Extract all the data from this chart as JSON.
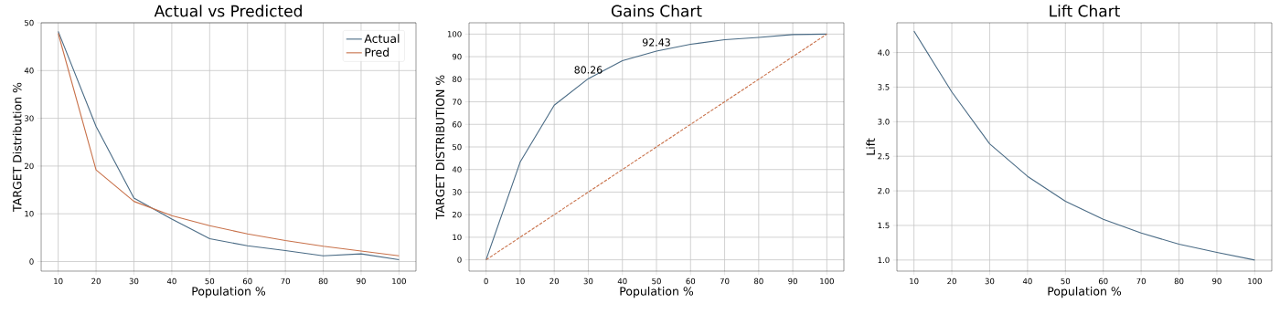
{
  "chart_data": [
    {
      "type": "line",
      "title": "Actual vs Predicted",
      "xlabel": "Population %",
      "ylabel": "TARGET Distribution %",
      "x": [
        10,
        20,
        30,
        40,
        50,
        60,
        70,
        80,
        90,
        100
      ],
      "series": [
        {
          "name": "Actual",
          "color": "#4a6b85",
          "values": [
            48.2,
            28.3,
            13.3,
            8.9,
            4.8,
            3.3,
            2.3,
            1.2,
            1.6,
            0.4
          ]
        },
        {
          "name": "Pred",
          "color": "#c8714a",
          "values": [
            47.8,
            19.2,
            12.6,
            9.6,
            7.5,
            5.8,
            4.4,
            3.2,
            2.2,
            1.2
          ]
        }
      ],
      "xlim": [
        5.5,
        104.5
      ],
      "ylim": [
        -2,
        50
      ],
      "xticks": [
        10,
        20,
        30,
        40,
        50,
        60,
        70,
        80,
        90,
        100
      ],
      "yticks": [
        0,
        10,
        20,
        30,
        40,
        50
      ],
      "grid": true,
      "legend": "top right"
    },
    {
      "type": "line",
      "title": "Gains Chart",
      "xlabel": "Population %",
      "ylabel": "TARGET DISTRIBUTION %",
      "x": [
        0,
        10,
        20,
        30,
        40,
        50,
        60,
        70,
        80,
        90,
        100
      ],
      "series": [
        {
          "color": "#4a6b85",
          "values": [
            0,
            43.3,
            68.5,
            80.26,
            88.2,
            92.43,
            95.5,
            97.5,
            98.5,
            99.8,
            100
          ]
        },
        {
          "color": "#c8714a",
          "line_style": "dashed",
          "values": [
            0,
            10,
            20,
            30,
            40,
            50,
            60,
            70,
            80,
            90,
            100
          ]
        }
      ],
      "annotations": [
        {
          "text": "80.26",
          "x": 30,
          "y": 80.26
        },
        {
          "text": "92.43",
          "x": 50,
          "y": 92.43
        }
      ],
      "xlim": [
        -5,
        105
      ],
      "ylim": [
        -5,
        105
      ],
      "xticks": [
        0,
        10,
        20,
        30,
        40,
        50,
        60,
        70,
        80,
        90,
        100
      ],
      "yticks": [
        0,
        10,
        20,
        30,
        40,
        50,
        60,
        70,
        80,
        90,
        100
      ],
      "grid": true
    },
    {
      "type": "line",
      "title": "Lift Chart",
      "xlabel": "Population %",
      "ylabel": "Lift",
      "x": [
        10,
        20,
        30,
        40,
        50,
        60,
        70,
        80,
        90,
        100
      ],
      "series": [
        {
          "color": "#4a6b85",
          "values": [
            4.31,
            3.43,
            2.68,
            2.21,
            1.85,
            1.59,
            1.39,
            1.23,
            1.11,
            1.0
          ]
        }
      ],
      "xlim": [
        5.5,
        104.5
      ],
      "ylim": [
        0.84,
        4.43
      ],
      "xticks": [
        10,
        20,
        30,
        40,
        50,
        60,
        70,
        80,
        90,
        100
      ],
      "yticks": [
        {
          "value": 1.0,
          "label": "1.0"
        },
        {
          "value": 1.5,
          "label": "1.5"
        },
        {
          "value": 2.0,
          "label": "2.0"
        },
        {
          "value": 2.5,
          "label": "2.5"
        },
        {
          "value": 3.0,
          "label": "3.0"
        },
        {
          "value": 3.5,
          "label": "3.5"
        },
        {
          "value": 4.0,
          "label": "4.0"
        }
      ],
      "grid": true
    }
  ]
}
